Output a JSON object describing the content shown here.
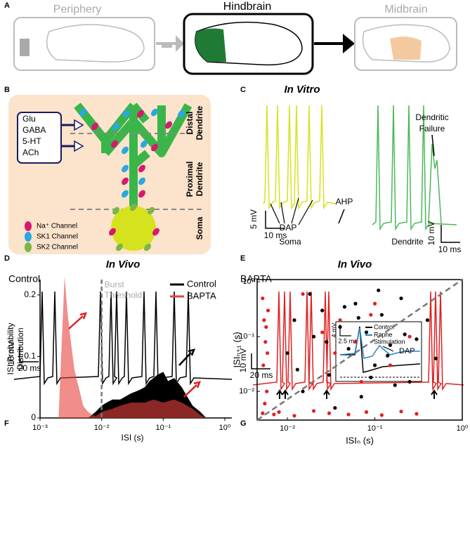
{
  "panel_labels": [
    "A",
    "B",
    "C",
    "D",
    "E",
    "F",
    "G"
  ],
  "panel_a": {
    "regions": [
      "Periphery",
      "Hindbrain",
      "Midbrain"
    ]
  },
  "panel_b": {
    "inputs": [
      "Glu",
      "GABA",
      "5-HT",
      "ACh"
    ],
    "compartments": [
      [
        "Distal",
        "Dendrite"
      ],
      [
        "Proximal",
        "Dendrite"
      ],
      [
        "Soma"
      ]
    ],
    "legend": [
      "Na⁺ Channel",
      "SK1 Channel",
      "SK2 Channel"
    ]
  },
  "panel_c": {
    "title": "In Vitro",
    "annotations": {
      "failure": [
        "Dendritic",
        "Failure"
      ],
      "ahp": "AHP",
      "dap": "DAP",
      "soma": "Soma",
      "dendrite": "Dendrite"
    },
    "scale_soma": [
      "5 mV",
      "10 ms"
    ],
    "scale_dendrite": [
      "10 mV",
      "10 ms"
    ]
  },
  "panel_d": {
    "title": "In Vivo",
    "condition": "Control",
    "scale": [
      "10 mV",
      "20 ms"
    ]
  },
  "panel_e": {
    "title": "In Vivo",
    "condition": "BAPTA",
    "scale": [
      "10 mV",
      "20 ms"
    ],
    "inset": {
      "scale": [
        "4 mV",
        "2.5 ms"
      ],
      "legend": [
        "Control",
        [
          "Raphe",
          "Stimulation"
        ]
      ],
      "dap": "DAP"
    }
  },
  "chart_data": [
    {
      "type": "area",
      "ylabel": [
        "ISI Probability",
        "Distribution"
      ],
      "xlabel": "ISI (s)",
      "threshold_label": [
        "Burst",
        "Threshold"
      ],
      "threshold": 0.01,
      "log_x": true,
      "legend": "upper right",
      "xlim": [
        0.001,
        1
      ],
      "ylim": [
        0,
        0.225
      ],
      "xticks": [
        {
          "value": 0.001,
          "label": "10⁻³"
        },
        {
          "value": 0.01,
          "label": "10⁻²"
        },
        {
          "value": 0.1,
          "label": "10⁻¹"
        },
        {
          "value": 1,
          "label": "10⁰"
        }
      ],
      "yticks": [
        0,
        0.1,
        0.2
      ],
      "series": [
        {
          "name": "Control",
          "color": "#000000",
          "x": [
            0.006,
            0.008,
            0.01,
            0.012,
            0.015,
            0.02,
            0.03,
            0.04,
            0.05,
            0.06,
            0.08,
            0.1,
            0.12,
            0.15,
            0.2,
            0.3,
            0.4,
            0.5
          ],
          "values": [
            0,
            0.01,
            0.02,
            0.025,
            0.03,
            0.03,
            0.04,
            0.045,
            0.05,
            0.06,
            0.07,
            0.075,
            0.06,
            0.065,
            0.05,
            0.02,
            0.01,
            0
          ]
        },
        {
          "name": "BAPTA",
          "color": "#e8413c",
          "x": [
            0.002,
            0.0022,
            0.0025,
            0.0028,
            0.0032,
            0.0036,
            0.004,
            0.0045,
            0.005,
            0.006,
            0.007,
            0.008,
            0.01,
            0.015,
            0.02,
            0.03,
            0.05,
            0.07,
            0.1,
            0.15,
            0.2,
            0.3,
            0.4,
            0.5
          ],
          "values": [
            0,
            0.1,
            0.23,
            0.17,
            0.12,
            0.08,
            0.06,
            0.04,
            0.02,
            0.01,
            0.005,
            0.003,
            0.01,
            0.015,
            0.02,
            0.025,
            0.025,
            0.03,
            0.025,
            0.03,
            0.025,
            0.015,
            0.005,
            0
          ]
        }
      ]
    },
    {
      "type": "scatter",
      "log_x": true,
      "log_y": true,
      "xlabel": "ISIₙ (s)",
      "ylabel": "ISIₙ₊₁ (s)",
      "xlim": [
        0.0045,
        1
      ],
      "ylim": [
        0.003,
        1.1
      ],
      "xticks": [
        {
          "value": 0.01,
          "label": "10⁻²"
        },
        {
          "value": 0.1,
          "label": "10⁻¹"
        },
        {
          "value": 1,
          "label": "10⁰"
        }
      ],
      "yticks": [
        {
          "value": 0.01,
          "label": "10⁻²"
        },
        {
          "value": 0.1,
          "label": "10⁻¹"
        },
        {
          "value": 1,
          "label": "10⁰"
        }
      ],
      "series": [
        {
          "color": "#000000",
          "x": [
            0.01,
            0.012,
            0.015,
            0.02,
            0.025,
            0.03,
            0.04,
            0.05,
            0.06,
            0.07,
            0.08,
            0.1,
            0.12,
            0.15,
            0.2,
            0.25,
            0.3,
            0.4,
            0.5,
            0.018,
            0.035,
            0.045,
            0.09,
            0.11,
            0.14,
            0.22,
            0.013,
            0.028,
            0.065,
            0.17
          ],
          "values": [
            0.05,
            0.2,
            0.01,
            0.1,
            0.3,
            0.02,
            0.15,
            0.06,
            0.4,
            0.008,
            0.12,
            0.03,
            0.25,
            0.07,
            0.5,
            0.015,
            0.09,
            0.2,
            0.04,
            0.6,
            0.005,
            0.35,
            0.018,
            0.7,
            0.045,
            0.11,
            0.025,
            0.08,
            0.22,
            0.013
          ]
        },
        {
          "color": "#e02020",
          "x": [
            0.0052,
            0.0054,
            0.0056,
            0.0053,
            0.0058,
            0.0055,
            0.0057,
            0.006,
            0.0052,
            0.0059,
            0.007,
            0.008,
            0.012,
            0.02,
            0.03,
            0.05,
            0.08,
            0.12,
            0.2,
            0.3,
            0.04,
            0.06,
            0.1,
            0.15,
            0.025,
            0.015,
            0.07,
            0.25,
            0.035,
            0.09
          ],
          "values": [
            0.5,
            0.2,
            0.08,
            0.03,
            0.01,
            0.006,
            0.15,
            0.3,
            0.004,
            0.05,
            0.0038,
            0.0042,
            0.0036,
            0.0044,
            0.004,
            0.0038,
            0.0042,
            0.0037,
            0.0043,
            0.0039,
            0.2,
            0.08,
            0.4,
            0.03,
            0.12,
            0.6,
            0.015,
            0.1,
            0.05,
            0.25
          ]
        }
      ]
    }
  ]
}
